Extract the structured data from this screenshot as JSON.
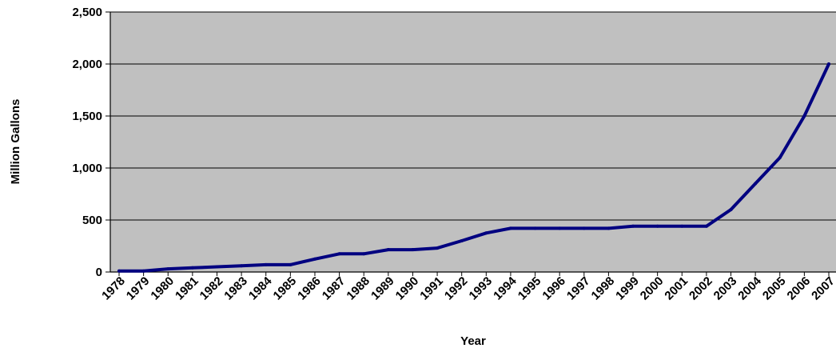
{
  "chart_data": {
    "type": "line",
    "title": "",
    "xlabel": "Year",
    "ylabel": "Million Gallons",
    "categories": [
      "1978",
      "1979",
      "1980",
      "1981",
      "1982",
      "1983",
      "1984",
      "1985",
      "1986",
      "1987",
      "1988",
      "1989",
      "1990",
      "1991",
      "1992",
      "1993",
      "1994",
      "1995",
      "1996",
      "1997",
      "1998",
      "1999",
      "2000",
      "2001",
      "2002",
      "2003",
      "2004",
      "2005",
      "2006",
      "2007"
    ],
    "series": [
      {
        "values": [
          10,
          10,
          30,
          40,
          50,
          60,
          70,
          70,
          125,
          175,
          175,
          215,
          215,
          230,
          300,
          375,
          420,
          420,
          420,
          420,
          420,
          440,
          440,
          440,
          440,
          600,
          850,
          1100,
          1500,
          2000
        ]
      }
    ],
    "ylim": [
      0,
      2500
    ],
    "yticks": [
      0,
      500,
      1000,
      1500,
      2000,
      2500
    ],
    "ytick_labels": [
      "0",
      "500",
      "1,000",
      "1,500",
      "2,000",
      "2,500"
    ],
    "grid": true,
    "legend": "none",
    "colors": {
      "plot_background": "#c0c0c0",
      "line": "#000080",
      "gridline": "#000000"
    }
  }
}
